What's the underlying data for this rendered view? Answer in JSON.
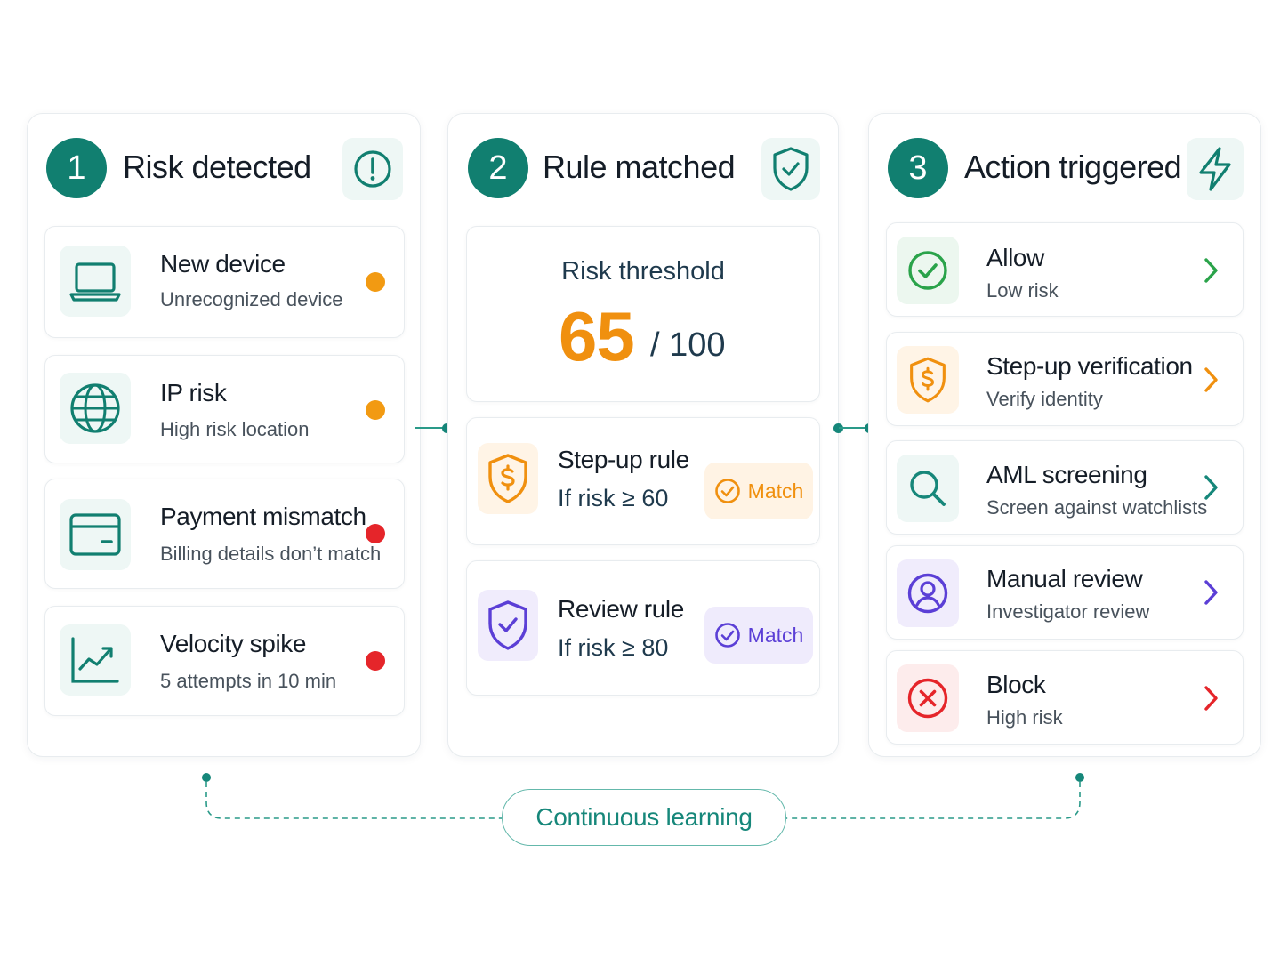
{
  "colors": {
    "teal": "#117f70",
    "orange": "#f0900f",
    "red": "#e5252a",
    "purple": "#5b3fd6",
    "green": "#2aa34a"
  },
  "panels": [
    {
      "step": "1",
      "title": "Risk detected",
      "header_icon": "alert-circle-icon",
      "signals": [
        {
          "title": "New device",
          "subtitle": "Unrecognized device",
          "icon": "laptop-icon",
          "severity": "medium",
          "color": "#f29a12"
        },
        {
          "title": "IP risk",
          "subtitle": "High risk location",
          "icon": "globe-icon",
          "severity": "medium",
          "color": "#f29a12"
        },
        {
          "title": "Payment mismatch",
          "subtitle": "Billing details don’t match",
          "icon": "credit-card-icon",
          "severity": "high",
          "color": "#e5252a"
        },
        {
          "title": "Velocity spike",
          "subtitle": "5 attempts in 10 min",
          "icon": "trend-up-icon",
          "severity": "high",
          "color": "#e5252a"
        }
      ]
    },
    {
      "step": "2",
      "title": "Rule matched",
      "header_icon": "shield-check-icon",
      "threshold": {
        "label": "Risk threshold",
        "value": "65",
        "max": "/ 100"
      },
      "rules": [
        {
          "title": "Step-up rule",
          "condition": "If risk ≥ 60",
          "badge": "Match",
          "icon": "shield-dollar-icon",
          "color": "#f0900f"
        },
        {
          "title": "Review rule",
          "condition": "If risk ≥ 80",
          "badge": "Match",
          "icon": "shield-check-icon",
          "color": "#5b3fd6"
        }
      ]
    },
    {
      "step": "3",
      "title": "Action triggered",
      "header_icon": "lightning-icon",
      "actions": [
        {
          "title": "Allow",
          "subtitle": "Low risk",
          "icon": "check-circle-icon",
          "color": "#2aa34a"
        },
        {
          "title": "Step-up verification",
          "subtitle": "Verify identity",
          "icon": "shield-dollar-icon",
          "color": "#f0900f"
        },
        {
          "title": "AML screening",
          "subtitle": "Screen against watchlists",
          "icon": "search-icon",
          "color": "#16877a"
        },
        {
          "title": "Manual review",
          "subtitle": "Investigator review",
          "icon": "user-circle-icon",
          "color": "#5b3fd6"
        },
        {
          "title": "Block",
          "subtitle": "High risk",
          "icon": "x-circle-icon",
          "color": "#e5252a"
        }
      ]
    }
  ],
  "footer": {
    "label": "Continuous learning"
  }
}
